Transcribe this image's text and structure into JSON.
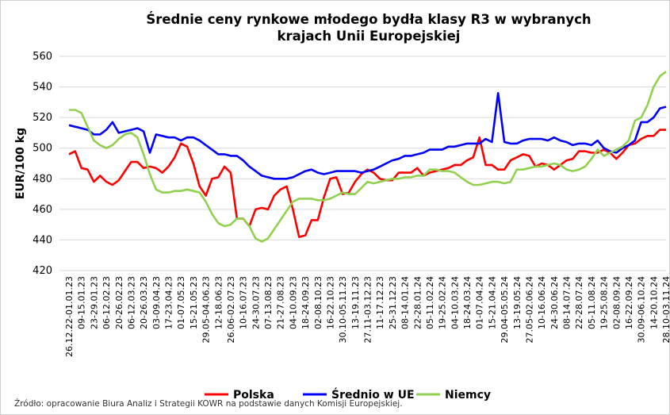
{
  "chart_data": {
    "type": "line",
    "title": "Średnie ceny rynkowe młodego bydła klasy R3 w wybranych krajach Unii Europejskiej",
    "y_label": "EUR/100 kg",
    "source": "Źródło: opracowanie Biura Analiz i Strategii KOWR na podstawie danych Komisji Europejskiej.",
    "categories": [
      "26.12.22-01.01.23",
      null,
      "09-15.01.23",
      null,
      "23-29.01.23",
      null,
      "06-12.02.23",
      null,
      "20-26.02.23",
      null,
      "06-12.03.23",
      null,
      "20-26.03.23",
      null,
      "03-09.04.23",
      null,
      "17-23.04.23",
      null,
      "01-07.05.23",
      null,
      "15-21.05.23",
      null,
      "29.05-04.06.23",
      null,
      "12-18.06.23",
      null,
      "26.06-02.07.23",
      null,
      "10-16.07.23",
      null,
      "24-30.07.23",
      null,
      "07-13.08.23",
      null,
      "21-27.08.23",
      null,
      "04-10.09.23",
      null,
      "18-24.09.23",
      null,
      "02-08.10.23",
      null,
      "16-22.10.23",
      null,
      "30.10-05.11.23",
      null,
      "13-19.11.23",
      null,
      "27.11-03.12.23",
      null,
      "11-17.12.23",
      null,
      "25-31.12.23",
      null,
      "08-14.01.24",
      null,
      "22-28.01.24",
      null,
      "05-11.02.24",
      null,
      "19-25.02.24",
      null,
      "04-10.03.24",
      null,
      "18-24.03.24",
      null,
      "01-07.04.24",
      null,
      "15-21.04.24",
      null,
      "29.04-05.05.24",
      null,
      "13-19.05.24",
      null,
      "27.05-02.06.24",
      null,
      "10-16.06.24",
      null,
      "24-30.06.24",
      null,
      "08-14.07.24",
      null,
      "22-28.07.24",
      null,
      "05-11.08.24",
      null,
      "19-25.08.24",
      null,
      "02-08.09.24",
      null,
      "16-22.09.24",
      null,
      "30.09-06.10.24",
      null,
      "14-20.10.24",
      null,
      "28.10-03.11.24"
    ],
    "series": [
      {
        "name": "Polska",
        "color": "#ff0000",
        "values": [
          496,
          498,
          487,
          486,
          478,
          482,
          478,
          476,
          479,
          485,
          491,
          491,
          487,
          488,
          487,
          484,
          488,
          494,
          503,
          501,
          490,
          475,
          469,
          480,
          481,
          488,
          484,
          454,
          454,
          449,
          460,
          461,
          460,
          469,
          473,
          475,
          460,
          442,
          443,
          453,
          453,
          468,
          480,
          481,
          470,
          471,
          478,
          483,
          486,
          484,
          480,
          479,
          479,
          484,
          484,
          484,
          487,
          482,
          484,
          485,
          486,
          487,
          489,
          489,
          492,
          494,
          507,
          489,
          489,
          486,
          486,
          492,
          494,
          496,
          495,
          488,
          490,
          489,
          486,
          489,
          492,
          493,
          498,
          498,
          497,
          497,
          499,
          497,
          493,
          497,
          502,
          503,
          506,
          508,
          508,
          512,
          512
        ]
      },
      {
        "name": "Średnio w UE",
        "color": "#0000ff",
        "values": [
          515,
          514,
          513,
          512,
          509,
          509,
          512,
          517,
          510,
          511,
          512,
          513,
          511,
          497,
          509,
          508,
          507,
          507,
          505,
          507,
          507,
          505,
          502,
          499,
          496,
          496,
          495,
          495,
          492,
          488,
          485,
          482,
          481,
          480,
          480,
          480,
          481,
          483,
          485,
          486,
          484,
          483,
          484,
          485,
          485,
          485,
          485,
          484,
          485,
          486,
          488,
          490,
          492,
          493,
          495,
          495,
          496,
          497,
          499,
          499,
          499,
          501,
          501,
          502,
          503,
          503,
          503,
          506,
          504,
          536,
          504,
          503,
          503,
          505,
          506,
          506,
          506,
          505,
          507,
          505,
          504,
          502,
          503,
          503,
          502,
          505,
          500,
          498,
          497,
          500,
          502,
          505,
          517,
          517,
          520,
          526,
          527
        ]
      },
      {
        "name": "Niemcy",
        "color": "#92d050",
        "values": [
          525,
          525,
          523,
          514,
          505,
          502,
          500,
          502,
          506,
          509,
          510,
          507,
          496,
          483,
          473,
          471,
          471,
          472,
          472,
          473,
          472,
          471,
          465,
          457,
          451,
          449,
          450,
          454,
          454,
          449,
          441,
          439,
          441,
          447,
          453,
          459,
          465,
          467,
          467,
          467,
          466,
          466,
          467,
          469,
          471,
          470,
          470,
          474,
          478,
          477,
          478,
          479,
          480,
          480,
          481,
          481,
          482,
          482,
          486,
          486,
          485,
          485,
          484,
          481,
          478,
          476,
          476,
          477,
          478,
          478,
          477,
          478,
          486,
          486,
          487,
          488,
          488,
          489,
          490,
          489,
          486,
          485,
          486,
          488,
          493,
          499,
          495,
          497,
          499,
          501,
          505,
          518,
          520,
          528,
          540,
          547,
          550
        ]
      }
    ],
    "ylim": [
      420,
      560
    ],
    "yticks": [
      420,
      440,
      460,
      480,
      500,
      520,
      540,
      560
    ],
    "grid": true
  }
}
